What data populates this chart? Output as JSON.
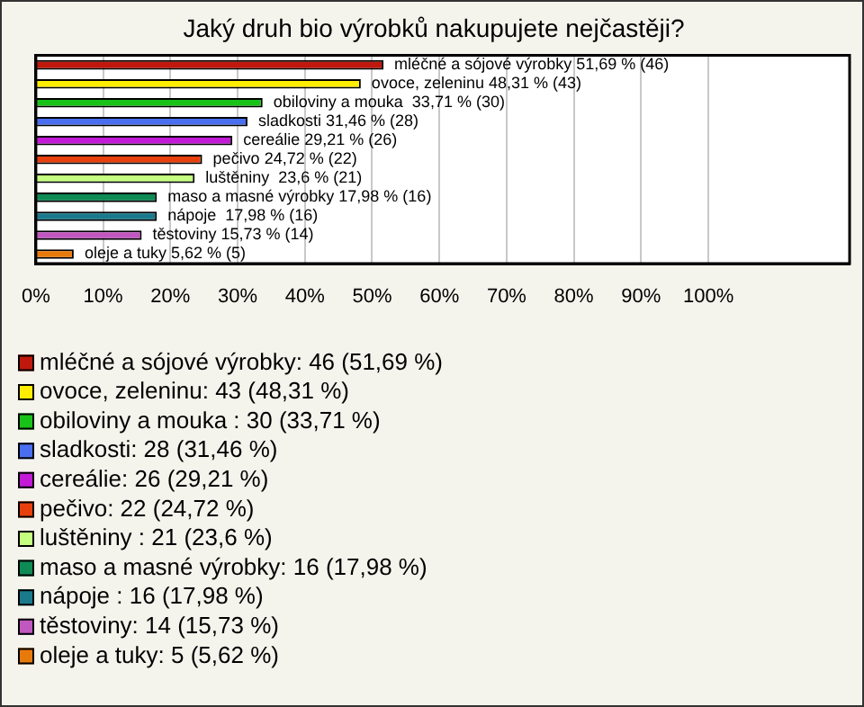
{
  "chart_data": {
    "type": "bar",
    "orientation": "horizontal",
    "title": "Jaký druh bio výrobků nakupujete nejčastěji?",
    "categories": [
      null,
      null,
      null,
      null,
      null,
      null,
      null,
      null,
      null,
      null,
      null
    ],
    "series": [
      {
        "name": "mléčné a sójové výrobky: 46 (51,69 %)",
        "color": "#c0180c",
        "values": [
          51.69,
          null,
          null,
          null,
          null,
          null,
          null,
          null,
          null,
          null,
          null
        ],
        "value_labels": [
          "mléčné a sójové výrobky 51,69 % (46)",
          null,
          null,
          null,
          null,
          null,
          null,
          null,
          null,
          null,
          null
        ]
      },
      {
        "name": "ovoce, zeleninu: 43 (48,31 %)",
        "color": "#ffee00",
        "values": [
          null,
          48.31,
          null,
          null,
          null,
          null,
          null,
          null,
          null,
          null,
          null
        ],
        "value_labels": [
          null,
          "ovoce, zeleninu 48,31 % (43)",
          null,
          null,
          null,
          null,
          null,
          null,
          null,
          null,
          null
        ]
      },
      {
        "name": "obiloviny a mouka : 30 (33,71 %)",
        "color": "#19c219",
        "values": [
          null,
          null,
          33.71,
          null,
          null,
          null,
          null,
          null,
          null,
          null,
          null
        ],
        "value_labels": [
          null,
          null,
          "obiloviny a mouka  33,71 % (30)",
          null,
          null,
          null,
          null,
          null,
          null,
          null,
          null
        ]
      },
      {
        "name": "sladkosti: 28 (31,46 %)",
        "color": "#4a6ef0",
        "values": [
          null,
          null,
          null,
          31.46,
          null,
          null,
          null,
          null,
          null,
          null,
          null
        ],
        "value_labels": [
          null,
          null,
          null,
          "sladkosti 31,46 % (28)",
          null,
          null,
          null,
          null,
          null,
          null,
          null
        ]
      },
      {
        "name": "cereálie: 26 (29,21 %)",
        "color": "#c21ad6",
        "values": [
          null,
          null,
          null,
          null,
          29.21,
          null,
          null,
          null,
          null,
          null,
          null
        ],
        "value_labels": [
          null,
          null,
          null,
          null,
          "cereálie 29,21 % (26)",
          null,
          null,
          null,
          null,
          null,
          null
        ]
      },
      {
        "name": "pečivo: 22 (24,72 %)",
        "color": "#e8400c",
        "values": [
          null,
          null,
          null,
          null,
          null,
          24.72,
          null,
          null,
          null,
          null,
          null
        ],
        "value_labels": [
          null,
          null,
          null,
          null,
          null,
          "pečivo 24,72 % (22)",
          null,
          null,
          null,
          null,
          null
        ]
      },
      {
        "name": "luštěniny : 21 (23,6 %)",
        "color": "#c4ff80",
        "values": [
          null,
          null,
          null,
          null,
          null,
          null,
          23.6,
          null,
          null,
          null,
          null
        ],
        "value_labels": [
          null,
          null,
          null,
          null,
          null,
          null,
          "luštěniny  23,6 % (21)",
          null,
          null,
          null,
          null
        ]
      },
      {
        "name": "maso a masné výrobky: 16 (17,98 %)",
        "color": "#0e8a55",
        "values": [
          null,
          null,
          null,
          null,
          null,
          null,
          null,
          17.98,
          null,
          null,
          null
        ],
        "value_labels": [
          null,
          null,
          null,
          null,
          null,
          null,
          null,
          "maso a masné výrobky 17,98 % (16)",
          null,
          null,
          null
        ]
      },
      {
        "name": "nápoje : 16 (17,98 %)",
        "color": "#1a7a8c",
        "values": [
          null,
          null,
          null,
          null,
          null,
          null,
          null,
          null,
          17.98,
          null,
          null
        ],
        "value_labels": [
          null,
          null,
          null,
          null,
          null,
          null,
          null,
          null,
          "nápoje  17,98 % (16)",
          null,
          null
        ]
      },
      {
        "name": "těstoviny: 14 (15,73 %)",
        "color": "#c058c0",
        "values": [
          null,
          null,
          null,
          null,
          null,
          null,
          null,
          null,
          null,
          15.73,
          null
        ],
        "value_labels": [
          null,
          null,
          null,
          null,
          null,
          null,
          null,
          null,
          null,
          "těstoviny 15,73 % (14)",
          null
        ]
      },
      {
        "name": "oleje a tuky: 5 (5,62 %)",
        "color": "#e87a0c",
        "values": [
          null,
          null,
          null,
          null,
          null,
          null,
          null,
          null,
          null,
          null,
          5.62
        ],
        "value_labels": [
          null,
          null,
          null,
          null,
          null,
          null,
          null,
          null,
          null,
          null,
          "oleje a tuky 5,62 % (5)"
        ]
      }
    ],
    "xlim": [
      0,
      121
    ],
    "xticks": [
      {
        "value": 0,
        "label": "0%"
      },
      {
        "value": 10,
        "label": "10%"
      },
      {
        "value": 20,
        "label": "20%"
      },
      {
        "value": 30,
        "label": "30%"
      },
      {
        "value": 40,
        "label": "40%"
      },
      {
        "value": 50,
        "label": "50%"
      },
      {
        "value": 60,
        "label": "60%"
      },
      {
        "value": 70,
        "label": "70%"
      },
      {
        "value": 80,
        "label": "80%"
      },
      {
        "value": 90,
        "label": "90%"
      },
      {
        "value": 100,
        "label": "100%"
      }
    ],
    "grid": "x",
    "legend": "bottom",
    "tick_labels": "x"
  }
}
